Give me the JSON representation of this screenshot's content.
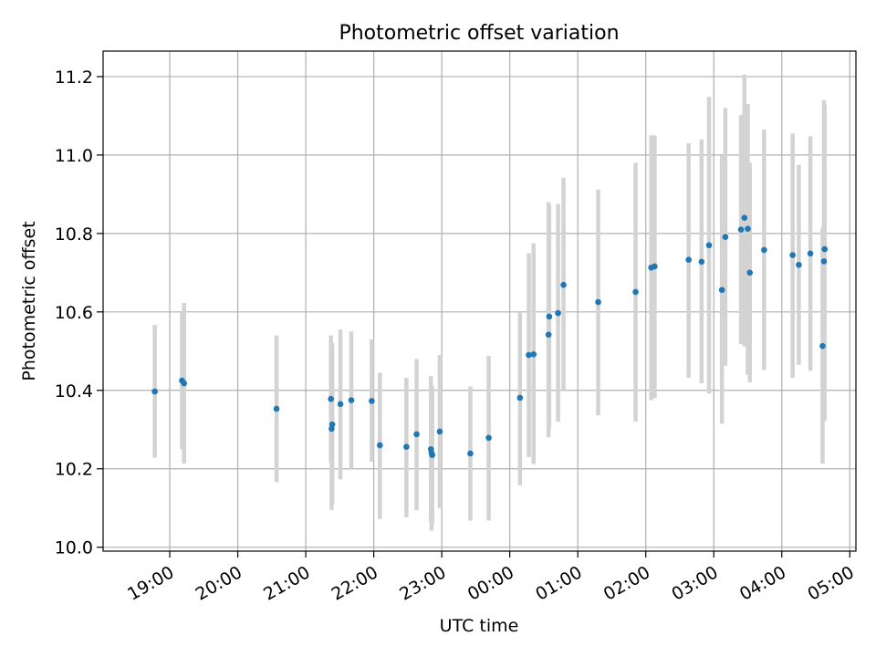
{
  "chart_data": {
    "type": "scatter",
    "title": "Photometric offset variation",
    "xlabel": "UTC time",
    "ylabel": "Photometric offset",
    "grid": true,
    "x_unit": "hours from 00:00 UTC",
    "xlim": [
      -5.98,
      5.09
    ],
    "ylim": [
      9.99,
      11.265
    ],
    "x_ticks": [
      {
        "value": -5,
        "label": "19:00"
      },
      {
        "value": -4,
        "label": "20:00"
      },
      {
        "value": -3,
        "label": "21:00"
      },
      {
        "value": -2,
        "label": "22:00"
      },
      {
        "value": -1,
        "label": "23:00"
      },
      {
        "value": 0,
        "label": "00:00"
      },
      {
        "value": 1,
        "label": "01:00"
      },
      {
        "value": 2,
        "label": "02:00"
      },
      {
        "value": 3,
        "label": "03:00"
      },
      {
        "value": 4,
        "label": "04:00"
      },
      {
        "value": 5,
        "label": "05:00"
      }
    ],
    "y_ticks": [
      {
        "value": 10.0,
        "label": "10.0"
      },
      {
        "value": 10.2,
        "label": "10.2"
      },
      {
        "value": 10.4,
        "label": "10.4"
      },
      {
        "value": 10.6,
        "label": "10.6"
      },
      {
        "value": 10.8,
        "label": "10.8"
      },
      {
        "value": 11.0,
        "label": "11.0"
      },
      {
        "value": 11.2,
        "label": "11.2"
      }
    ],
    "point_color": "#1f77b4",
    "errorbar_color": "#d3d3d3",
    "points": [
      {
        "x": -5.22,
        "y": 10.397,
        "ylo": 10.228,
        "yhi": 10.567
      },
      {
        "x": -4.82,
        "y": 10.425,
        "ylo": 10.25,
        "yhi": 10.6
      },
      {
        "x": -4.79,
        "y": 10.418,
        "ylo": 10.213,
        "yhi": 10.623
      },
      {
        "x": -3.43,
        "y": 10.353,
        "ylo": 10.166,
        "yhi": 10.54
      },
      {
        "x": -2.63,
        "y": 10.378,
        "ylo": 10.217,
        "yhi": 10.54
      },
      {
        "x": -2.62,
        "y": 10.302,
        "ylo": 10.095,
        "yhi": 10.51
      },
      {
        "x": -2.61,
        "y": 10.313,
        "ylo": 10.11,
        "yhi": 10.52
      },
      {
        "x": -2.49,
        "y": 10.365,
        "ylo": 10.173,
        "yhi": 10.555
      },
      {
        "x": -2.33,
        "y": 10.375,
        "ylo": 10.2,
        "yhi": 10.55
      },
      {
        "x": -2.03,
        "y": 10.373,
        "ylo": 10.218,
        "yhi": 10.53
      },
      {
        "x": -1.91,
        "y": 10.26,
        "ylo": 10.072,
        "yhi": 10.445
      },
      {
        "x": -1.52,
        "y": 10.256,
        "ylo": 10.076,
        "yhi": 10.432
      },
      {
        "x": -1.37,
        "y": 10.288,
        "ylo": 10.094,
        "yhi": 10.48
      },
      {
        "x": -1.16,
        "y": 10.25,
        "ylo": 10.065,
        "yhi": 10.436
      },
      {
        "x": -1.15,
        "y": 10.24,
        "ylo": 10.042,
        "yhi": 10.4
      },
      {
        "x": -1.14,
        "y": 10.235,
        "ylo": 10.06,
        "yhi": 10.41
      },
      {
        "x": -1.03,
        "y": 10.295,
        "ylo": 10.1,
        "yhi": 10.49
      },
      {
        "x": -0.58,
        "y": 10.239,
        "ylo": 10.068,
        "yhi": 10.41
      },
      {
        "x": -0.31,
        "y": 10.279,
        "ylo": 10.068,
        "yhi": 10.488
      },
      {
        "x": 0.15,
        "y": 10.381,
        "ylo": 10.158,
        "yhi": 10.6
      },
      {
        "x": 0.28,
        "y": 10.49,
        "ylo": 10.23,
        "yhi": 10.75
      },
      {
        "x": 0.35,
        "y": 10.492,
        "ylo": 10.212,
        "yhi": 10.775
      },
      {
        "x": 0.57,
        "y": 10.542,
        "ylo": 10.28,
        "yhi": 10.88
      },
      {
        "x": 0.58,
        "y": 10.588,
        "ylo": 10.3,
        "yhi": 10.87
      },
      {
        "x": 0.71,
        "y": 10.597,
        "ylo": 10.32,
        "yhi": 10.875
      },
      {
        "x": 0.79,
        "y": 10.669,
        "ylo": 10.4,
        "yhi": 10.942
      },
      {
        "x": 1.3,
        "y": 10.625,
        "ylo": 10.336,
        "yhi": 10.912
      },
      {
        "x": 1.85,
        "y": 10.651,
        "ylo": 10.32,
        "yhi": 10.98
      },
      {
        "x": 2.08,
        "y": 10.713,
        "ylo": 10.375,
        "yhi": 11.05
      },
      {
        "x": 2.13,
        "y": 10.716,
        "ylo": 10.38,
        "yhi": 11.05
      },
      {
        "x": 2.63,
        "y": 10.733,
        "ylo": 10.432,
        "yhi": 11.03
      },
      {
        "x": 2.82,
        "y": 10.728,
        "ylo": 10.418,
        "yhi": 11.04
      },
      {
        "x": 2.93,
        "y": 10.77,
        "ylo": 10.392,
        "yhi": 11.148
      },
      {
        "x": 3.12,
        "y": 10.656,
        "ylo": 10.315,
        "yhi": 10.998
      },
      {
        "x": 3.17,
        "y": 10.791,
        "ylo": 10.463,
        "yhi": 11.12
      },
      {
        "x": 3.4,
        "y": 10.81,
        "ylo": 10.518,
        "yhi": 11.102
      },
      {
        "x": 3.45,
        "y": 10.84,
        "ylo": 10.512,
        "yhi": 11.205
      },
      {
        "x": 3.5,
        "y": 10.812,
        "ylo": 10.44,
        "yhi": 11.13
      },
      {
        "x": 3.53,
        "y": 10.7,
        "ylo": 10.42,
        "yhi": 10.98
      },
      {
        "x": 3.74,
        "y": 10.758,
        "ylo": 10.452,
        "yhi": 11.065
      },
      {
        "x": 4.16,
        "y": 10.745,
        "ylo": 10.432,
        "yhi": 11.055
      },
      {
        "x": 4.25,
        "y": 10.72,
        "ylo": 10.465,
        "yhi": 10.975
      },
      {
        "x": 4.42,
        "y": 10.749,
        "ylo": 10.45,
        "yhi": 11.048
      },
      {
        "x": 4.6,
        "y": 10.513,
        "ylo": 10.213,
        "yhi": 10.815
      },
      {
        "x": 4.62,
        "y": 10.729,
        "ylo": 10.33,
        "yhi": 11.14
      },
      {
        "x": 4.63,
        "y": 10.76,
        "ylo": 10.322,
        "yhi": 11.128
      }
    ]
  }
}
